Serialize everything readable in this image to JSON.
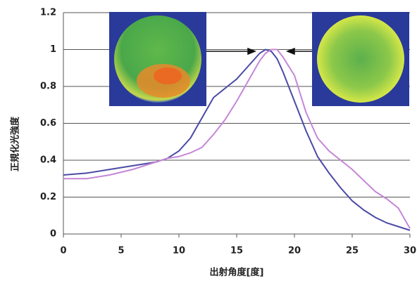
{
  "chart_data": {
    "type": "line",
    "x_label": "出射角度[度]",
    "y_label": "正規化光強度",
    "x": [
      0,
      2,
      4,
      6,
      8,
      9,
      10,
      11,
      12,
      13,
      14,
      15,
      16,
      17,
      17.5,
      18,
      18.5,
      19,
      20,
      21,
      22,
      23,
      24,
      25,
      26,
      27,
      28,
      29,
      30
    ],
    "series": [
      {
        "color": "#4b4aa6",
        "values": [
          0.32,
          0.33,
          0.35,
          0.37,
          0.39,
          0.41,
          0.45,
          0.52,
          0.63,
          0.74,
          0.79,
          0.84,
          0.91,
          0.98,
          1.0,
          0.99,
          0.95,
          0.88,
          0.72,
          0.56,
          0.42,
          0.33,
          0.25,
          0.18,
          0.13,
          0.09,
          0.06,
          0.04,
          0.02
        ]
      },
      {
        "color": "#c586d6",
        "values": [
          0.3,
          0.3,
          0.32,
          0.35,
          0.39,
          0.41,
          0.42,
          0.44,
          0.47,
          0.54,
          0.62,
          0.72,
          0.83,
          0.94,
          0.98,
          1.0,
          1.0,
          0.96,
          0.86,
          0.66,
          0.52,
          0.45,
          0.4,
          0.35,
          0.29,
          0.23,
          0.19,
          0.14,
          0.03
        ]
      }
    ],
    "xlim": [
      0,
      30
    ],
    "xticks": [
      0,
      5,
      10,
      15,
      20,
      25,
      30
    ],
    "ylim": [
      0,
      1.2
    ],
    "yticks": [
      0,
      0.2,
      0.4,
      0.6,
      0.8,
      1,
      1.2
    ],
    "grid": true
  }
}
